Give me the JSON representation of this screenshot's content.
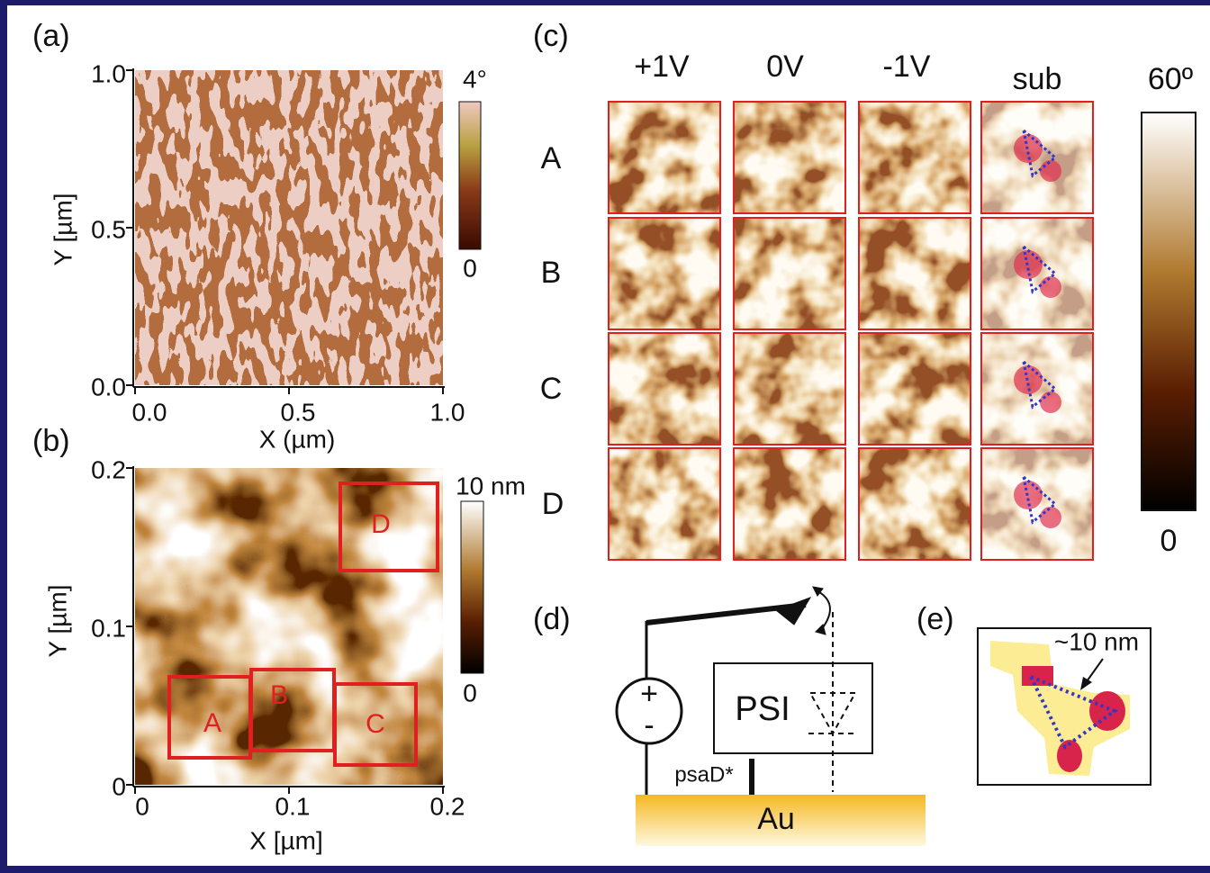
{
  "panels": {
    "a": {
      "label": "(a)",
      "y_ticks": [
        "1.0",
        "0.5",
        "0.0"
      ],
      "x_ticks": [
        "0.0",
        "0.5",
        "1.0"
      ],
      "x_label": "X (µm)",
      "y_label": "Y [µm]",
      "colorbar": {
        "max": "4°",
        "min": "0"
      }
    },
    "b": {
      "label": "(b)",
      "y_ticks": [
        "0.2",
        "0.1",
        "0"
      ],
      "x_ticks": [
        "0",
        "0.1",
        "0.2"
      ],
      "x_label": "X [µm]",
      "y_label": "Y [µm]",
      "colorbar": {
        "max": "10 nm",
        "min": "0"
      },
      "regions": [
        "A",
        "B",
        "C",
        "D"
      ]
    },
    "c": {
      "label": "(c)",
      "columns": [
        "+1V",
        "0V",
        "-1V",
        "sub"
      ],
      "rows": [
        "A",
        "B",
        "C",
        "D"
      ],
      "colorbar": {
        "max": "60º",
        "min": "0"
      }
    },
    "d": {
      "label": "(d)",
      "plus": "+",
      "minus": "-",
      "protein": "PSI",
      "linker": "psaD*",
      "substrate": "Au"
    },
    "e": {
      "label": "(e)",
      "annotation": "~10 nm"
    }
  }
}
